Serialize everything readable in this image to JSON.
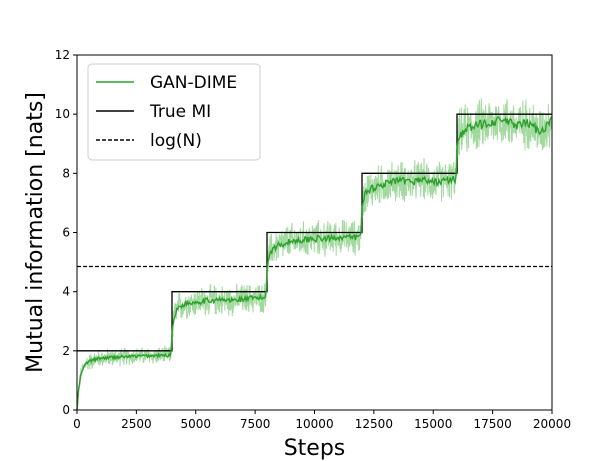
{
  "chart_data": {
    "type": "line",
    "xlabel": "Steps",
    "ylabel": "Mutual information [nats]",
    "xlim": [
      0,
      20000
    ],
    "ylim": [
      0,
      12
    ],
    "xticks": [
      0,
      2500,
      5000,
      7500,
      10000,
      12500,
      15000,
      17500,
      20000
    ],
    "yticks": [
      0,
      2,
      4,
      6,
      8,
      10,
      12
    ],
    "grid": false,
    "legend_position": "top-left",
    "series": [
      {
        "name": "GAN-DIME",
        "color": "#2ca02c",
        "raw_color": "#98d594",
        "x": [
          0,
          50,
          100,
          200,
          400,
          700,
          1000,
          1500,
          2000,
          2500,
          3000,
          3500,
          3950,
          4000,
          4100,
          4300,
          4600,
          5000,
          5500,
          6000,
          6500,
          7000,
          7500,
          7950,
          8000,
          8100,
          8300,
          8600,
          9000,
          9500,
          10000,
          10500,
          11000,
          11500,
          11950,
          12000,
          12100,
          12400,
          12800,
          13200,
          13600,
          14000,
          14500,
          15000,
          15500,
          15950,
          16000,
          16100,
          16400,
          16800,
          17200,
          17600,
          18000,
          18500,
          19000,
          19500,
          20000
        ],
        "values": [
          0.0,
          0.5,
          0.9,
          1.3,
          1.6,
          1.7,
          1.75,
          1.78,
          1.8,
          1.82,
          1.83,
          1.84,
          1.85,
          2.6,
          3.2,
          3.5,
          3.6,
          3.65,
          3.7,
          3.72,
          3.7,
          3.75,
          3.78,
          3.8,
          4.8,
          5.3,
          5.5,
          5.6,
          5.7,
          5.75,
          5.8,
          5.78,
          5.85,
          5.82,
          5.85,
          6.8,
          7.3,
          7.5,
          7.6,
          7.7,
          7.75,
          7.7,
          7.8,
          7.7,
          7.75,
          7.8,
          8.8,
          9.3,
          9.5,
          9.6,
          9.7,
          9.75,
          9.8,
          9.6,
          9.7,
          9.4,
          9.8
        ]
      },
      {
        "name": "True MI",
        "color": "#000000",
        "style": "solid",
        "x": [
          0,
          4000,
          4000,
          8000,
          8000,
          12000,
          12000,
          16000,
          16000,
          20000
        ],
        "values": [
          2,
          2,
          4,
          4,
          6,
          6,
          8,
          8,
          10,
          10
        ]
      },
      {
        "name": "log(N)",
        "color": "#000000",
        "style": "dashed",
        "x": [
          0,
          20000
        ],
        "values": [
          4.85,
          4.85
        ]
      }
    ],
    "raw_noise_amplitude": [
      {
        "x_start": 0,
        "x_end": 4000,
        "amp": 0.35
      },
      {
        "x_start": 4000,
        "x_end": 8000,
        "amp": 0.6
      },
      {
        "x_start": 8000,
        "x_end": 12000,
        "amp": 0.7
      },
      {
        "x_start": 12000,
        "x_end": 16000,
        "amp": 0.8
      },
      {
        "x_start": 16000,
        "x_end": 20000,
        "amp": 1.0
      }
    ]
  }
}
